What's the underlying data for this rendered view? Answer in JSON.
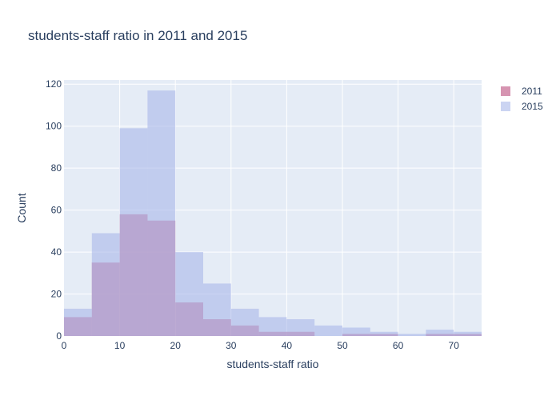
{
  "chart_data": {
    "type": "histogram",
    "title": "students-staff ratio in 2011 and 2015",
    "xlabel": "students-staff ratio",
    "ylabel": "Count",
    "bin_edges": [
      0,
      5,
      10,
      15,
      20,
      25,
      30,
      35,
      40,
      45,
      50,
      55,
      60,
      65,
      70,
      75
    ],
    "xlim": [
      0,
      75
    ],
    "ylim": [
      0,
      122
    ],
    "x_ticks": [
      0,
      10,
      20,
      30,
      40,
      50,
      60,
      70
    ],
    "y_ticks": [
      0,
      20,
      40,
      60,
      80,
      100,
      120
    ],
    "grid": true,
    "legend_position": "top-right",
    "series": [
      {
        "name": "2011",
        "color": "#c66b93",
        "values": [
          9,
          35,
          58,
          55,
          16,
          8,
          5,
          2,
          2,
          0,
          1,
          1,
          0,
          1,
          1
        ]
      },
      {
        "name": "2015",
        "color": "#a9b8ea",
        "values": [
          13,
          49,
          99,
          117,
          40,
          25,
          13,
          9,
          8,
          5,
          4,
          2,
          1,
          3,
          2
        ]
      }
    ]
  }
}
